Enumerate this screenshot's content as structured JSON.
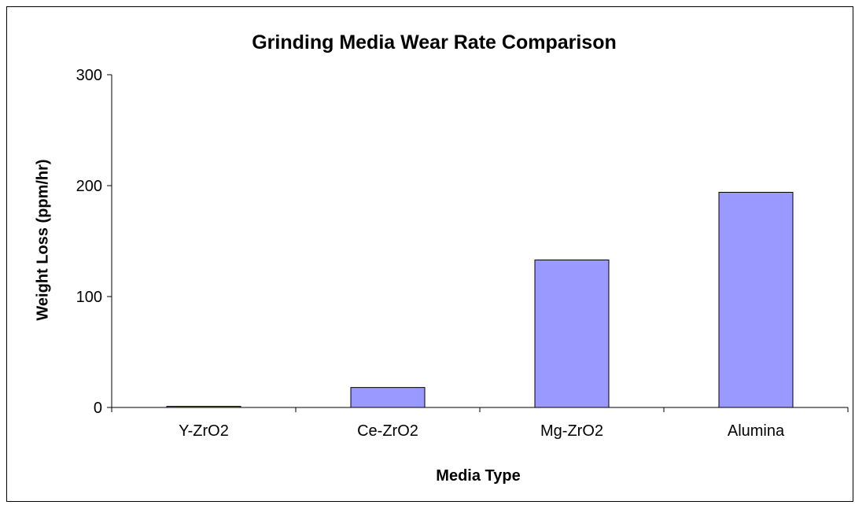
{
  "chart_data": {
    "type": "bar",
    "title": "Grinding Media Wear Rate Comparison",
    "xlabel": "Media Type",
    "ylabel": "Weight Loss (ppm/hr)",
    "categories": [
      "Y-ZrO2",
      "Ce-ZrO2",
      "Mg-ZrO2",
      "Alumina"
    ],
    "values": [
      1,
      18,
      133,
      194
    ],
    "ylim": [
      0,
      300
    ],
    "yticks": [
      "0",
      "100",
      "200",
      "300"
    ],
    "yticks_values": [
      0,
      100,
      200,
      300
    ],
    "grid": false,
    "legend": "none",
    "colors": {
      "bar_fill": "#9999ff",
      "bar_stroke": "#000000",
      "axis": "#000000",
      "background": "#ffffff"
    }
  }
}
